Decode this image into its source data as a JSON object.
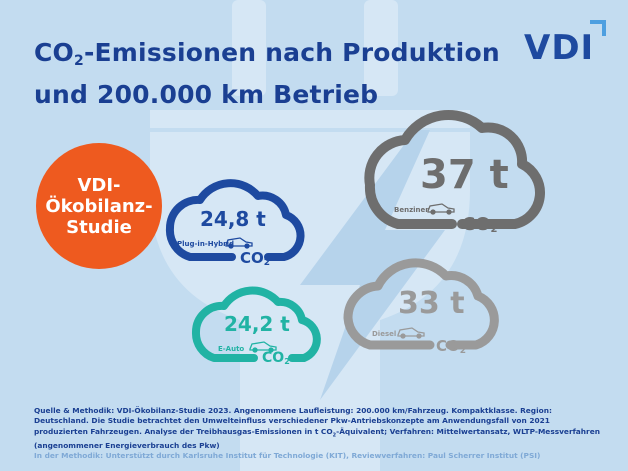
{
  "title": {
    "line1_prefix": "CO",
    "line1_sub": "2",
    "line1_rest": "-Emissionen nach Produktion",
    "line2": "und 200.000 km Betrieb"
  },
  "logo": {
    "text": "VDI"
  },
  "badge": {
    "line1": "VDI-",
    "line2": "Ökobilanz-",
    "line3": "Studie"
  },
  "clouds": [
    {
      "value": "24,8 t",
      "label": "Plug-in-Hybrid",
      "unit_prefix": "CO",
      "unit_sub": "2",
      "color": "#1e4aa0"
    },
    {
      "value": "37 t",
      "label": "Benziner",
      "unit_prefix": "CO",
      "unit_sub": "2",
      "color": "#6e6e6e"
    },
    {
      "value": "24,2 t",
      "label": "E-Auto",
      "unit_prefix": "CO",
      "unit_sub": "2",
      "color": "#21b3a4"
    },
    {
      "value": "33 t",
      "label": "Diesel",
      "unit_prefix": "CO",
      "unit_sub": "2",
      "color": "#9a9a9a"
    }
  ],
  "footer": {
    "text_a": "Quelle & Methodik: VDI-Ökobilanz-Studie 2023. Angenommene Laufleistung: 200.000 km/Fahrzeug. Kompaktklasse. Region: Deutschland. Die Studie betrachtet den Umwelteinfluss verschiedener Pkw-Antriebskonzepte am Anwendungsfall von 2021 produzierten Fahrzeugen. Analyse der Treibhausgas-Emissionen in t CO",
    "text_sub": "2",
    "text_b": "-Äquivalent; Verfahren: Mittelwertansatz, WLTP-Messverfahren (angenommener Energieverbrauch des Pkw)",
    "note": "In der Methodik: Unterstützt durch Karlsruhe Institut für Technologie (KIT), Reviewverfahren: Paul Scherrer Institut (PSI)"
  },
  "colors": {
    "background": "#c3dcf0",
    "title": "#1a3f92",
    "badge": "#ee5a1f",
    "plugin_hybrid": "#1e4aa0",
    "benziner": "#6e6e6e",
    "e_auto": "#21b3a4",
    "diesel": "#9a9a9a"
  },
  "icons": [
    "plug-background-icon",
    "lightning-background-icon",
    "car-icon"
  ]
}
